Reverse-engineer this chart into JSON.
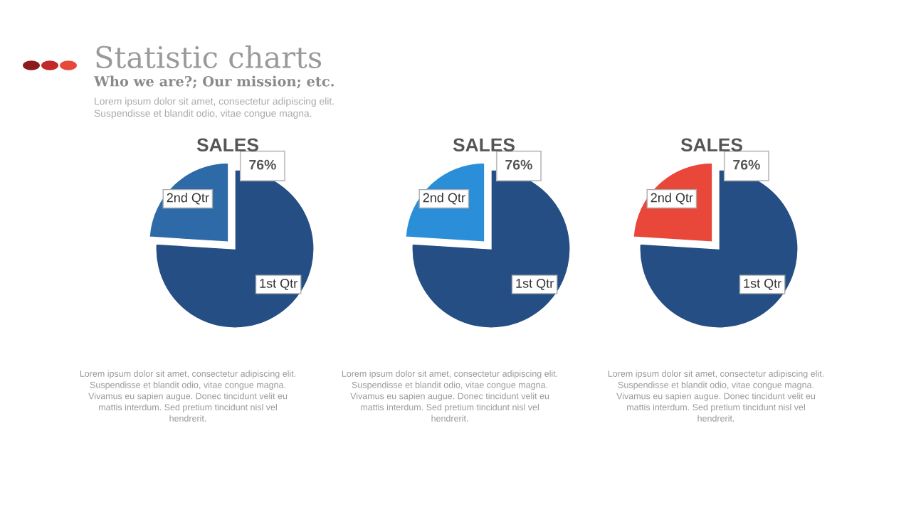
{
  "chart_data": [
    {
      "type": "other",
      "title": "Statistic charts",
      "subtitle": "Who we are?; Our mission; etc.",
      "annotations": [
        "Lorem ipsum dolor sit amet, consectetur adipiscing elit.\nSuspendisse et blandit odio, vitae congue magna."
      ]
    },
    {
      "type": "pie",
      "title": "SALES",
      "categories": [
        "1st Qtr",
        "2nd Qtr"
      ],
      "values": [
        76,
        24
      ],
      "colors": [
        "#254e84",
        "#2e6aa8"
      ],
      "value_labels": [
        "76%",
        null
      ],
      "annotations": [
        "Lorem ipsum dolor sit amet, consectetur adipiscing elit.\nSuspendisse et blandit odio, vitae congue magna.\nVivamus eu sapien augue. Donec tincidunt velit eu\nmattis interdum. Sed pretium tincidunt nisl vel\nhendrerit."
      ]
    },
    {
      "type": "pie",
      "title": "SALES",
      "categories": [
        "1st Qtr",
        "2nd Qtr"
      ],
      "values": [
        76,
        24
      ],
      "colors": [
        "#254e84",
        "#2a8fd8"
      ],
      "value_labels": [
        "76%",
        null
      ],
      "annotations": [
        "Lorem ipsum dolor sit amet, consectetur adipiscing elit.\nSuspendisse et blandit odio, vitae congue magna.\nVivamus eu sapien augue. Donec tincidunt velit eu\nmattis interdum. Sed pretium tincidunt nisl vel\nhendrerit."
      ]
    },
    {
      "type": "pie",
      "title": "SALES",
      "categories": [
        "1st Qtr",
        "2nd Qtr"
      ],
      "values": [
        76,
        24
      ],
      "colors": [
        "#254e84",
        "#e8473a"
      ],
      "value_labels": [
        "76%",
        null
      ],
      "annotations": [
        "Lorem ipsum dolor sit amet, consectetur adipiscing elit.\nSuspendisse et blandit odio, vitae congue magna.\nVivamus eu sapien augue. Donec tincidunt velit eu\nmattis interdum. Sed pretium tincidunt nisl vel\nhendrerit."
      ]
    }
  ]
}
